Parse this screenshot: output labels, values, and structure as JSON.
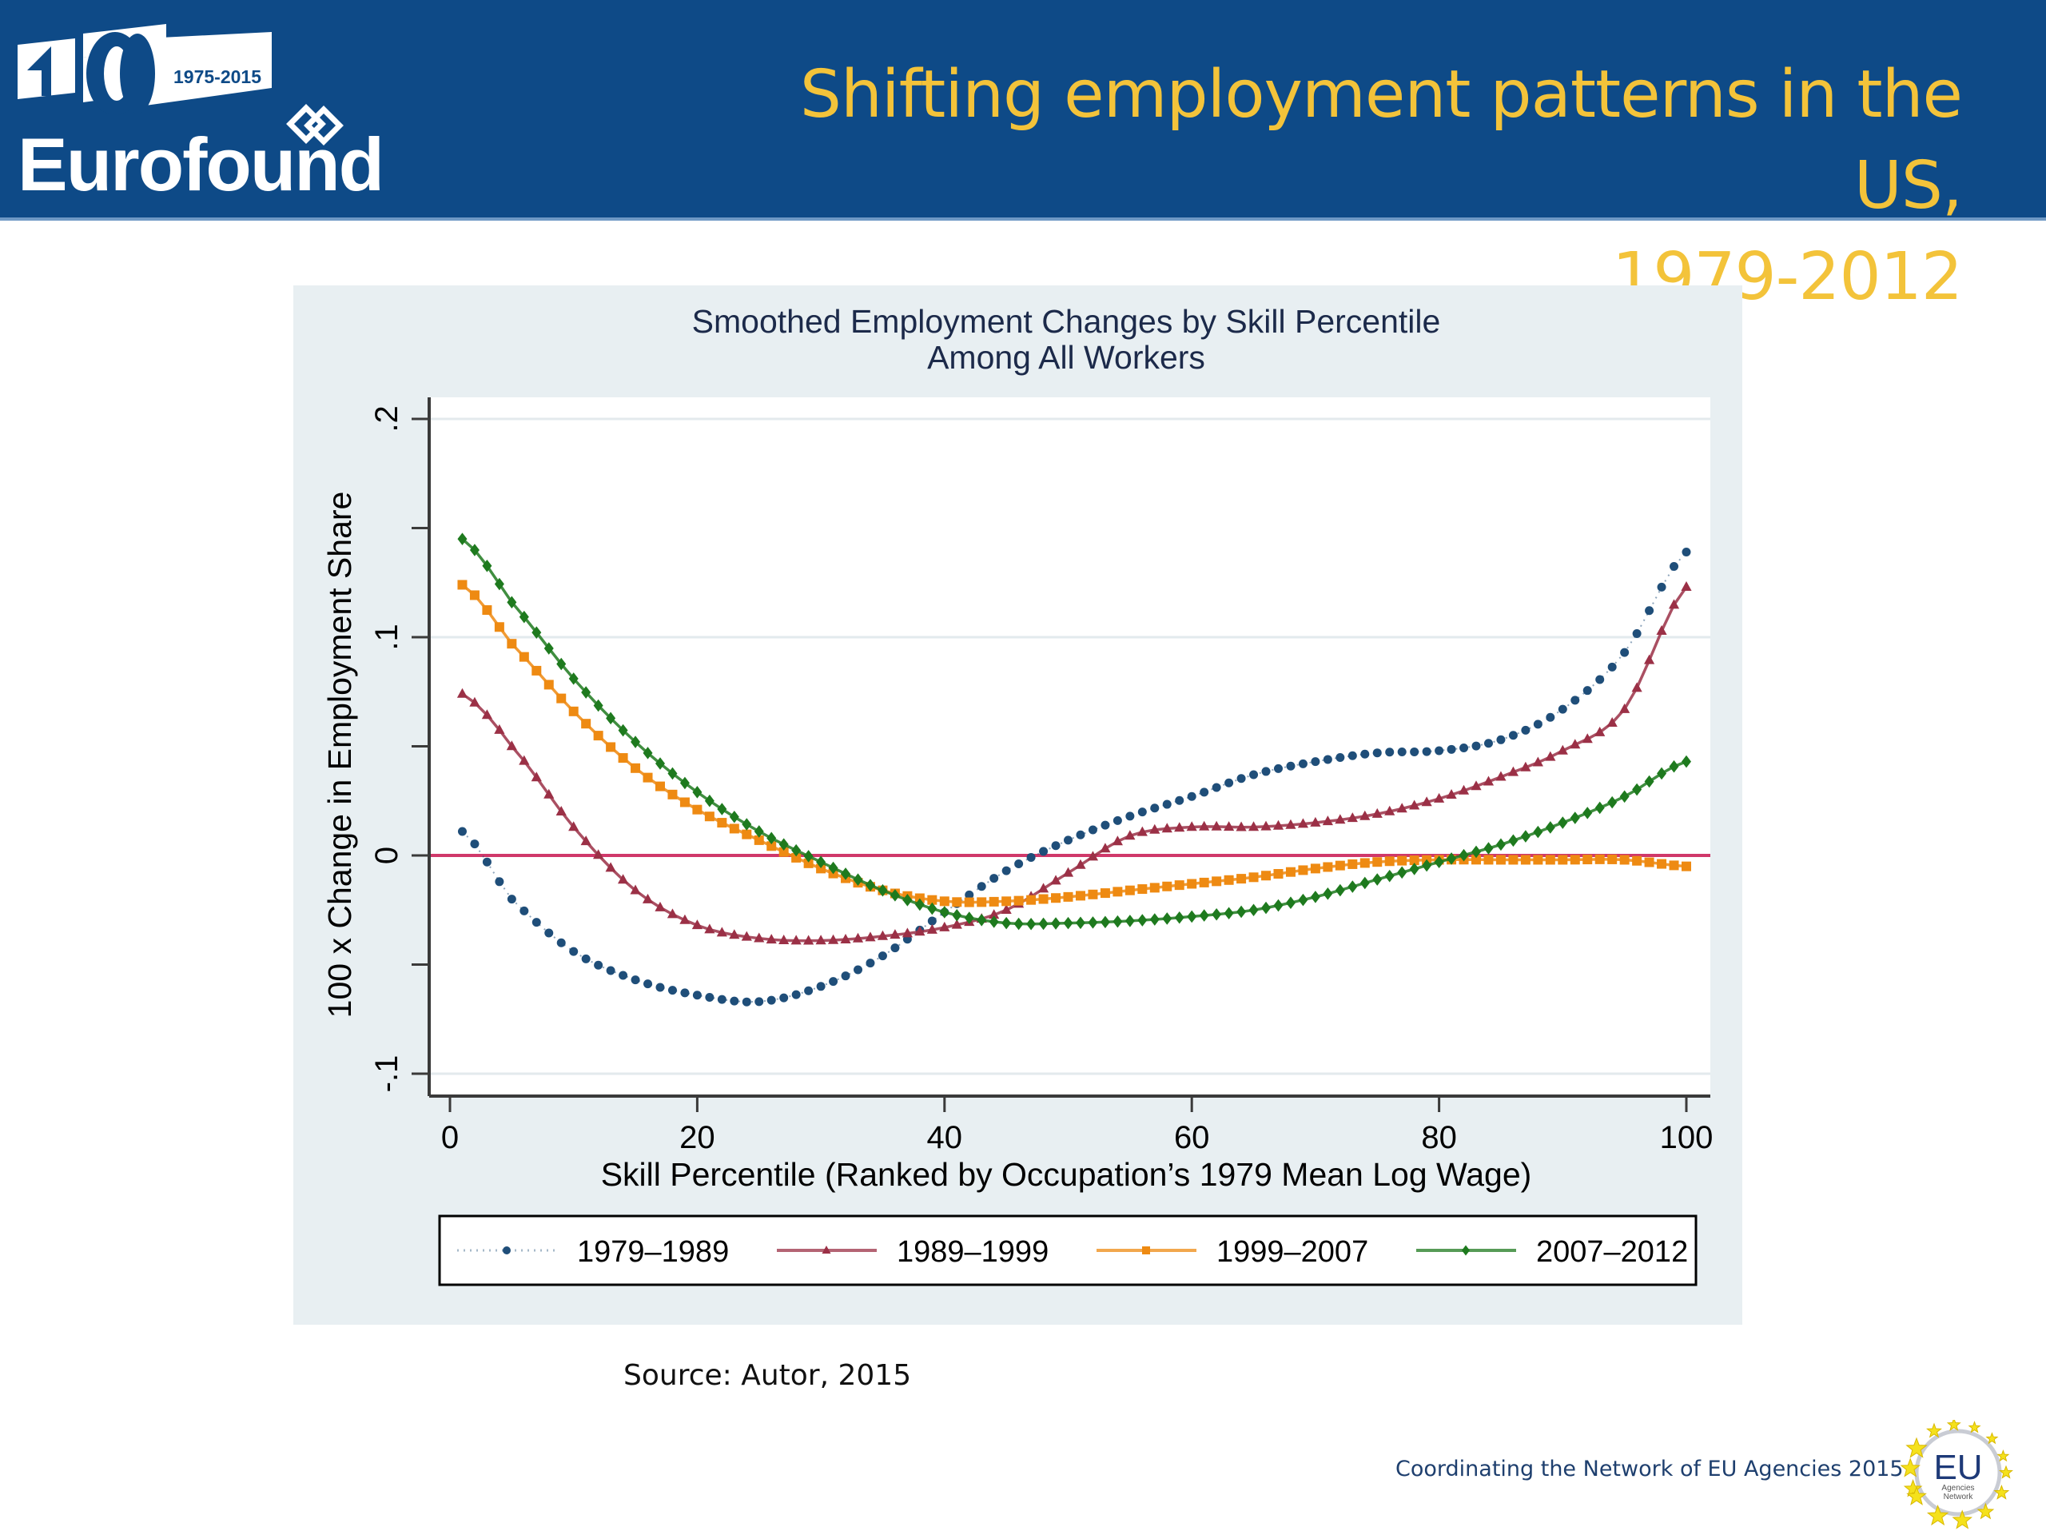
{
  "header": {
    "logo_years": "1975-2015",
    "logo_number": "40",
    "logo_word": "Eurofound",
    "title_line1": "Shifting employment patterns in the US,",
    "title_line2": "1979-2012",
    "colors": {
      "background": "#0e4a87",
      "title": "#f3c33a"
    }
  },
  "source": "Source: Autor, 2015",
  "footer": {
    "text": "Coordinating the Network of EU Agencies 2015",
    "badge_main": "EU",
    "badge_sub1": "Agencies",
    "badge_sub2": "Network"
  },
  "chart_data": {
    "type": "line",
    "title": "Smoothed Employment Changes by Skill Percentile",
    "subtitle": "Among All Workers",
    "xlabel": "Skill Percentile (Ranked by Occupation’s 1979 Mean Log Wage)",
    "ylabel": "100 x Change in Employment Share",
    "xlim": [
      0,
      100
    ],
    "ylim": [
      -0.1,
      0.2
    ],
    "xticks": [
      0,
      20,
      40,
      60,
      80,
      100
    ],
    "xtick_labels": [
      "0",
      "20",
      "40",
      "60",
      "80",
      "100"
    ],
    "yticks": [
      -0.1,
      -0.05,
      0,
      0.05,
      0.1,
      0.15,
      0.2
    ],
    "ytick_labels": [
      "-.1",
      "",
      "0",
      "",
      ".1",
      "",
      ".2"
    ],
    "grid": true,
    "reference_line": {
      "y": 0,
      "color": "#d0386a"
    },
    "legend_position": "bottom",
    "x": [
      1,
      5,
      10,
      15,
      20,
      25,
      30,
      35,
      40,
      45,
      50,
      55,
      60,
      65,
      70,
      75,
      80,
      85,
      90,
      95,
      100
    ],
    "series": [
      {
        "name": "1979–1989",
        "color": "#1f4e79",
        "marker": "circle",
        "line": "dotted",
        "values": [
          0.011,
          -0.02,
          -0.044,
          -0.057,
          -0.064,
          -0.067,
          -0.06,
          -0.046,
          -0.026,
          -0.007,
          0.007,
          0.018,
          0.027,
          0.037,
          0.043,
          0.047,
          0.048,
          0.053,
          0.067,
          0.093,
          0.139
        ]
      },
      {
        "name": "1989–1999",
        "color": "#9b3046",
        "marker": "triangle",
        "line": "solid",
        "values": [
          0.074,
          0.05,
          0.013,
          -0.016,
          -0.032,
          -0.038,
          -0.039,
          -0.037,
          -0.033,
          -0.025,
          -0.008,
          0.009,
          0.013,
          0.013,
          0.015,
          0.019,
          0.026,
          0.036,
          0.048,
          0.067,
          0.123
        ]
      },
      {
        "name": "1999–2007",
        "color": "#ee8a12",
        "marker": "square",
        "line": "solid",
        "values": [
          0.124,
          0.097,
          0.066,
          0.04,
          0.021,
          0.007,
          -0.006,
          -0.016,
          -0.021,
          -0.021,
          -0.019,
          -0.016,
          -0.013,
          -0.01,
          -0.006,
          -0.003,
          -0.002,
          -0.002,
          -0.002,
          -0.002,
          -0.005
        ]
      },
      {
        "name": "2007–2012",
        "color": "#1e7a1e",
        "marker": "diamond",
        "line": "solid",
        "values": [
          0.145,
          0.116,
          0.081,
          0.052,
          0.029,
          0.011,
          -0.003,
          -0.016,
          -0.026,
          -0.031,
          -0.031,
          -0.03,
          -0.028,
          -0.025,
          -0.019,
          -0.011,
          -0.003,
          0.005,
          0.015,
          0.027,
          0.043
        ]
      }
    ]
  }
}
